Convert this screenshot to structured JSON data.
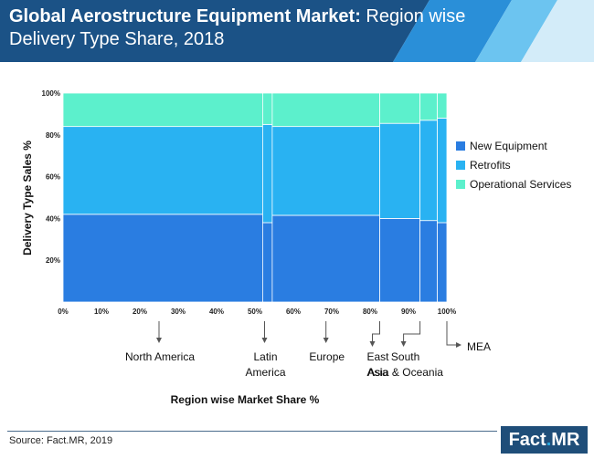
{
  "header": {
    "title_bold": "Global Aerostructure Equipment Market:",
    "title_rest": " Region wise Delivery Type Share, 2018"
  },
  "chart_data": {
    "type": "marimekko",
    "title": "Global Aerostructure Equipment Market: Region wise Delivery Type Share, 2018",
    "xlabel": "Region wise Market Share %",
    "ylabel": "Delivery Type Sales %",
    "x_ticks": [
      "0%",
      "10%",
      "20%",
      "30%",
      "40%",
      "50%",
      "60%",
      "70%",
      "80%",
      "90%",
      "100%"
    ],
    "y_ticks": [
      "20%",
      "40%",
      "60%",
      "80%",
      "100%"
    ],
    "xlim": [
      0,
      100
    ],
    "ylim": [
      0,
      100
    ],
    "legend_position": "right",
    "series": [
      {
        "name": "New Equipment",
        "color": "#2a7de1"
      },
      {
        "name": "Retrofits",
        "color": "#29b2f2"
      },
      {
        "name": "Operational Services",
        "color": "#5cf0cc"
      }
    ],
    "segments": [
      {
        "region": "North America",
        "label_lines": [
          "North America"
        ],
        "x_start": 0,
        "x_end": 52,
        "values": [
          42,
          42,
          16
        ]
      },
      {
        "region": "Latin America",
        "label_lines": [
          "Latin",
          "America"
        ],
        "x_start": 52,
        "x_end": 54.5,
        "values": [
          38,
          47,
          15
        ]
      },
      {
        "region": "Europe",
        "label_lines": [
          "Europe"
        ],
        "x_start": 54.5,
        "x_end": 82.5,
        "values": [
          41.5,
          42.5,
          16
        ]
      },
      {
        "region": "East Asia",
        "label_lines": [
          "East",
          "Asia"
        ],
        "x_start": 82.5,
        "x_end": 93,
        "values": [
          40,
          45.5,
          14.5
        ]
      },
      {
        "region": "South Asia & Oceania",
        "label_lines": [
          "South",
          "Asia & Oceania"
        ],
        "x_start": 93,
        "x_end": 97.5,
        "values": [
          39,
          48,
          13
        ]
      },
      {
        "region": "MEA",
        "label_lines": [
          "MEA"
        ],
        "x_start": 97.5,
        "x_end": 100,
        "values": [
          38,
          50,
          12
        ]
      }
    ]
  },
  "footer": {
    "source": "Source: Fact.MR, 2019",
    "logo_main": "Fact",
    "logo_dot": ".",
    "logo_end": "MR"
  }
}
